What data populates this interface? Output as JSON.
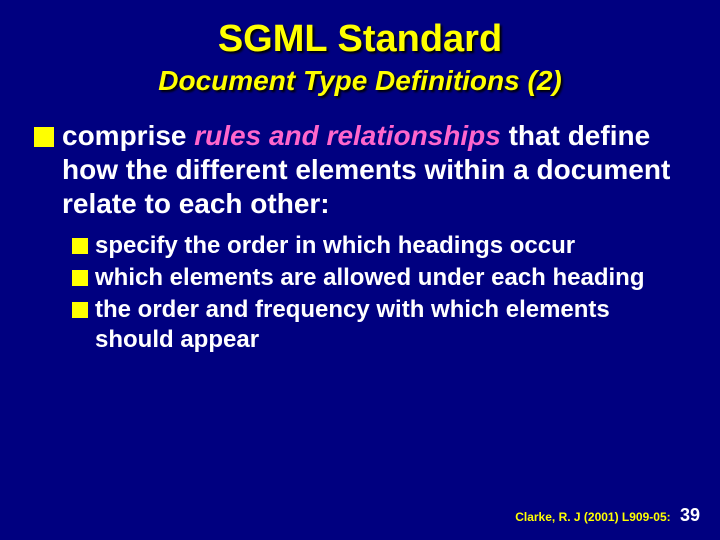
{
  "colors": {
    "background": "#000080",
    "title_color": "#ffff00",
    "body_text_color": "#ffffff",
    "emphasis_color": "#ff66cc",
    "bullet_color": "#ffff00",
    "shadow_color": "#000000"
  },
  "typography": {
    "title_fontsize": 38,
    "subtitle_fontsize": 28,
    "body_fontsize": 28,
    "sub_fontsize": 24,
    "footer_fontsize": 12,
    "pagenum_fontsize": 18,
    "font_family": "Arial",
    "bold": true
  },
  "title": "SGML Standard",
  "subtitle": "Document Type Definitions (2)",
  "main": {
    "pre": "comprise ",
    "emph": "rules and relationships",
    "post": " that define how the different elements within a document relate to each other:"
  },
  "subs": [
    "specify the order in which headings occur",
    "which elements are allowed under each heading",
    "the order and frequency with which elements should appear"
  ],
  "footer": {
    "cite": "Clarke, R. J (2001) L909-05:",
    "page": "39"
  }
}
